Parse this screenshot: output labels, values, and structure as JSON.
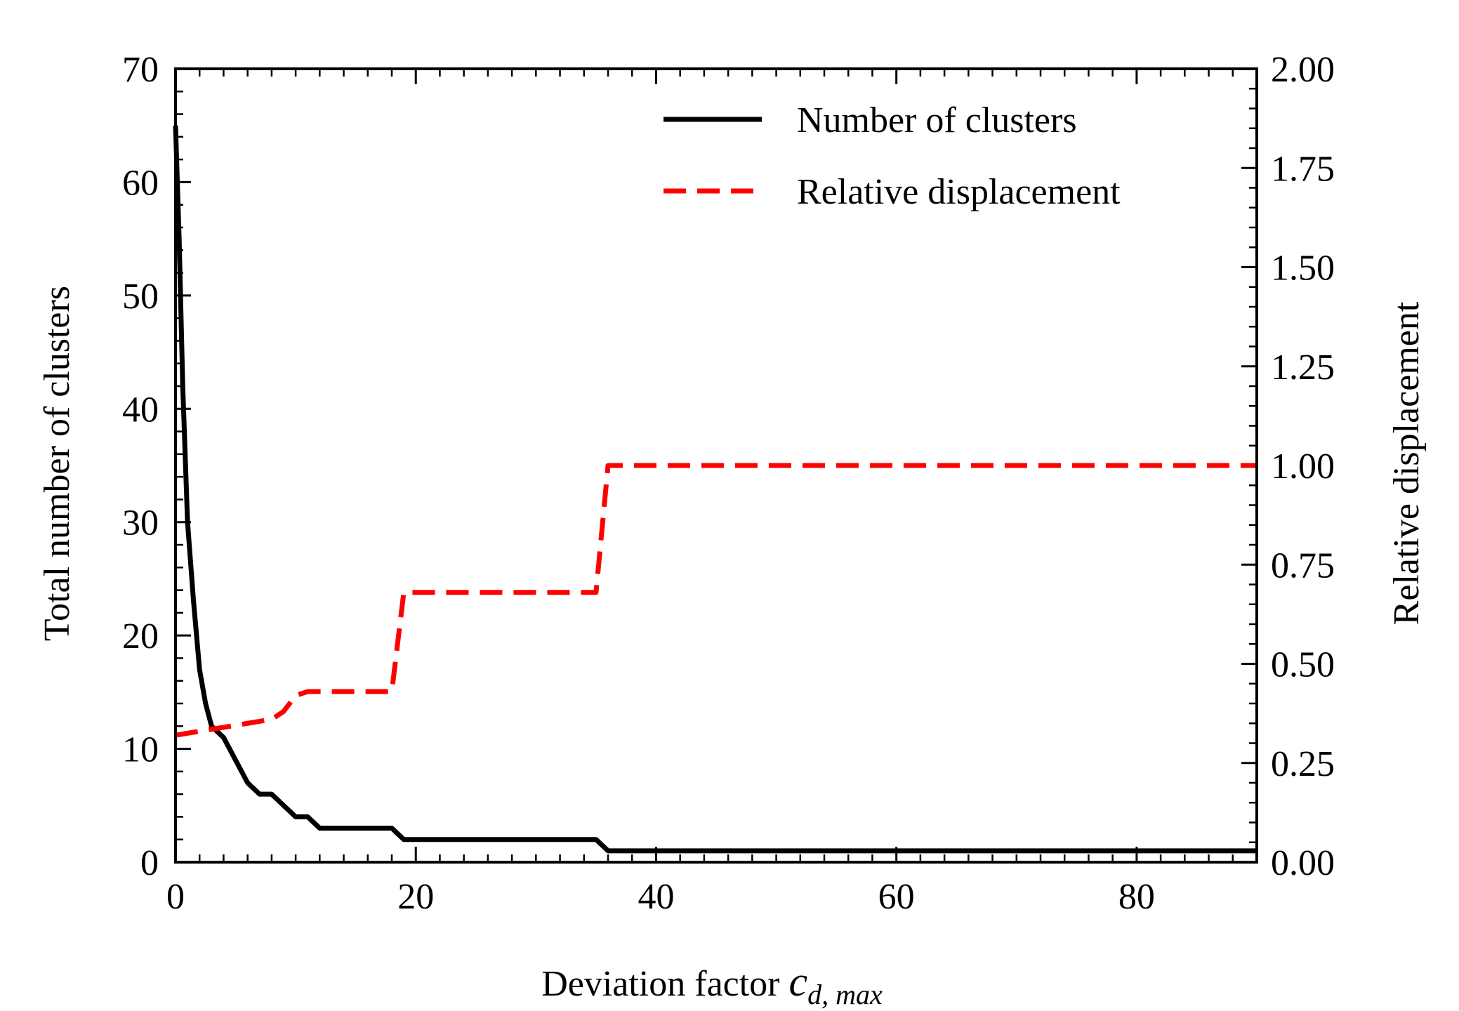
{
  "chart_data": {
    "type": "line",
    "xlabel_prefix": "Deviation factor ",
    "xlabel_symbol": "c",
    "xlabel_subscript": "d, max",
    "ylabel_left": "Total number of clusters",
    "ylabel_right": "Relative displacement",
    "xlim": [
      0,
      90
    ],
    "ylim_left": [
      0,
      70
    ],
    "ylim_right": [
      0,
      2.0
    ],
    "xticks": [
      0,
      20,
      40,
      60,
      80
    ],
    "xtick_labels": [
      "0",
      "20",
      "40",
      "60",
      "80"
    ],
    "yticks_left": [
      0,
      10,
      20,
      30,
      40,
      50,
      60,
      70
    ],
    "ytick_labels_left": [
      "0",
      "10",
      "20",
      "30",
      "40",
      "50",
      "60",
      "70"
    ],
    "yticks_right": [
      0,
      0.25,
      0.5,
      0.75,
      1.0,
      1.25,
      1.5,
      1.75,
      2.0
    ],
    "ytick_labels_right": [
      "0.00",
      "0.25",
      "0.50",
      "0.75",
      "1.00",
      "1.25",
      "1.50",
      "1.75",
      "2.00"
    ],
    "legend_position": "top-right",
    "series": [
      {
        "name": "Number of clusters",
        "axis": "left",
        "color": "#000000",
        "style": "solid",
        "x": [
          0,
          0.3,
          0.6,
          1,
          1.5,
          2,
          2.5,
          3,
          4,
          5,
          6,
          7,
          8,
          9,
          10,
          11,
          12,
          13,
          14,
          15,
          16,
          17,
          18,
          19,
          20,
          25,
          30,
          35,
          36,
          40,
          50,
          60,
          70,
          80,
          90
        ],
        "y": [
          65,
          55,
          42,
          30,
          23,
          17,
          14,
          12,
          11,
          9,
          7,
          6,
          6,
          5,
          4,
          4,
          3,
          3,
          3,
          3,
          3,
          3,
          3,
          2,
          2,
          2,
          2,
          2,
          1,
          1,
          1,
          1,
          1,
          1,
          1
        ]
      },
      {
        "name": "Relative displacement",
        "axis": "right",
        "color": "#ff0000",
        "style": "dashed",
        "x": [
          0,
          2,
          4,
          6,
          8,
          9,
          10,
          11,
          12,
          18,
          19,
          35,
          36,
          40,
          50,
          60,
          70,
          80,
          90
        ],
        "y": [
          0.32,
          0.33,
          0.34,
          0.35,
          0.36,
          0.38,
          0.42,
          0.43,
          0.43,
          0.43,
          0.68,
          0.68,
          1.0,
          1.0,
          1.0,
          1.0,
          1.0,
          1.0,
          1.0
        ]
      }
    ]
  }
}
